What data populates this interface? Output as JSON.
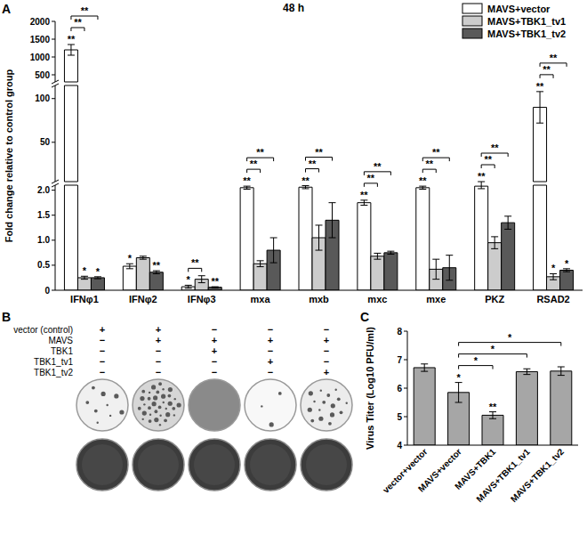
{
  "panel_labels": [
    "A",
    "B",
    "C"
  ],
  "chart_data": [
    {
      "type": "bar",
      "title": "48 h",
      "y_label": "Fold change relative to control group",
      "categories": [
        "IFNφ1",
        "IFNφ2",
        "IFNφ3",
        "mxa",
        "mxb",
        "mxc",
        "mxe",
        "PKZ",
        "RSAD2"
      ],
      "series": [
        {
          "name": "MAVS+vector",
          "color": "#ffffff",
          "values": [
            1200,
            0.48,
            0.07,
            2.05,
            2.06,
            1.75,
            2.05,
            2.08,
            90
          ],
          "errors": [
            150,
            0.05,
            0.03,
            0.03,
            0.03,
            0.05,
            0.03,
            0.05,
            18
          ],
          "stars": [
            "**",
            "*",
            "*",
            "**",
            "**",
            "**",
            "**",
            "**",
            "**"
          ]
        },
        {
          "name": "MAVS+TBK1_tv1",
          "color": "#cccccc",
          "values": [
            0.25,
            0.65,
            0.22,
            0.53,
            1.05,
            0.68,
            0.42,
            0.95,
            0.27
          ],
          "errors": [
            0.03,
            0.03,
            0.07,
            0.06,
            0.25,
            0.06,
            0.2,
            0.12,
            0.06
          ],
          "stars": [
            "*",
            null,
            null,
            null,
            null,
            null,
            null,
            null,
            "*"
          ]
        },
        {
          "name": "MAVS+TBK1_tv2",
          "color": "#595959",
          "values": [
            0.25,
            0.36,
            0.06,
            0.8,
            1.4,
            0.75,
            0.45,
            1.35,
            0.4
          ],
          "errors": [
            0.02,
            0.03,
            0.01,
            0.25,
            0.35,
            0.03,
            0.25,
            0.13,
            0.03
          ],
          "stars": [
            "*",
            "**",
            "**",
            null,
            null,
            null,
            null,
            null,
            "*"
          ]
        }
      ],
      "ylim": [
        0,
        2000
      ],
      "y_breaks": [
        [
          2.1,
          5
        ],
        [
          115,
          300
        ]
      ],
      "yticks": [
        0,
        0.5,
        {
          "value": 1,
          "label": "1.0"
        },
        1.5,
        {
          "value": 2,
          "label": "2.0"
        },
        50,
        100,
        500,
        1000,
        1500,
        2000
      ],
      "legend": "top-right",
      "comparisons": [
        {
          "category": "IFNφ1",
          "from": "MAVS+vector",
          "to": "MAVS+TBK1_tv1",
          "label": "**"
        },
        {
          "category": "IFNφ1",
          "from": "MAVS+vector",
          "to": "MAVS+TBK1_tv2",
          "label": "**"
        },
        {
          "category": "IFNφ3",
          "from": "MAVS+vector",
          "to": "MAVS+TBK1_tv1",
          "label": "**"
        },
        {
          "category": "mxa",
          "from": "MAVS+vector",
          "to": "MAVS+TBK1_tv1",
          "label": "**"
        },
        {
          "category": "mxa",
          "from": "MAVS+vector",
          "to": "MAVS+TBK1_tv2",
          "label": "**"
        },
        {
          "category": "mxb",
          "from": "MAVS+vector",
          "to": "MAVS+TBK1_tv1",
          "label": "**"
        },
        {
          "category": "mxb",
          "from": "MAVS+vector",
          "to": "MAVS+TBK1_tv2",
          "label": "**"
        },
        {
          "category": "mxc",
          "from": "MAVS+vector",
          "to": "MAVS+TBK1_tv1",
          "label": "**"
        },
        {
          "category": "mxc",
          "from": "MAVS+vector",
          "to": "MAVS+TBK1_tv2",
          "label": "**"
        },
        {
          "category": "mxe",
          "from": "MAVS+vector",
          "to": "MAVS+TBK1_tv1",
          "label": "**"
        },
        {
          "category": "mxe",
          "from": "MAVS+vector",
          "to": "MAVS+TBK1_tv2",
          "label": "**"
        },
        {
          "category": "PKZ",
          "from": "MAVS+vector",
          "to": "MAVS+TBK1_tv1",
          "label": "**"
        },
        {
          "category": "PKZ",
          "from": "MAVS+vector",
          "to": "MAVS+TBK1_tv2",
          "label": "**"
        },
        {
          "category": "RSAD2",
          "from": "MAVS+vector",
          "to": "MAVS+TBK1_tv1",
          "label": "**"
        },
        {
          "category": "RSAD2",
          "from": "MAVS+vector",
          "to": "MAVS+TBK1_tv2",
          "label": "**"
        }
      ]
    },
    {
      "type": "bar",
      "y_label": "Virus Titer (Log10 PFU/ml)",
      "categories": [
        "vector+vector",
        "MAVS+vector",
        "MAVS+TBK1",
        "MAVS+TBK1_tv1",
        "MAVS+TBK1_tv2"
      ],
      "values": [
        6.72,
        5.85,
        5.05,
        6.58,
        6.6
      ],
      "errors": [
        0.13,
        0.35,
        0.12,
        0.1,
        0.15
      ],
      "stars": [
        null,
        "*",
        "**",
        null,
        null
      ],
      "color": "#a6a6a6",
      "ylim": [
        4,
        8
      ],
      "yticks": [
        4,
        5,
        6,
        7,
        8
      ],
      "comparisons": [
        {
          "from": "MAVS+vector",
          "to": "MAVS+TBK1",
          "label": "*"
        },
        {
          "from": "MAVS+vector",
          "to": "MAVS+TBK1_tv1",
          "label": "*"
        },
        {
          "from": "MAVS+vector",
          "to": "MAVS+TBK1_tv2",
          "label": "*"
        }
      ]
    }
  ],
  "panel_b": {
    "rows": [
      {
        "label": "vector (control)",
        "marks": [
          "+",
          "+",
          "−",
          "−",
          "−"
        ]
      },
      {
        "label": "MAVS",
        "marks": [
          "−",
          "+",
          "+",
          "+",
          "+"
        ]
      },
      {
        "label": "TBK1",
        "marks": [
          "−",
          "−",
          "+",
          "−",
          "−"
        ]
      },
      {
        "label": "TBK1_tv1",
        "marks": [
          "−",
          "−",
          "−",
          "+",
          "−"
        ]
      },
      {
        "label": "TBK1_tv2",
        "marks": [
          "−",
          "−",
          "−",
          "−",
          "+"
        ]
      }
    ]
  }
}
